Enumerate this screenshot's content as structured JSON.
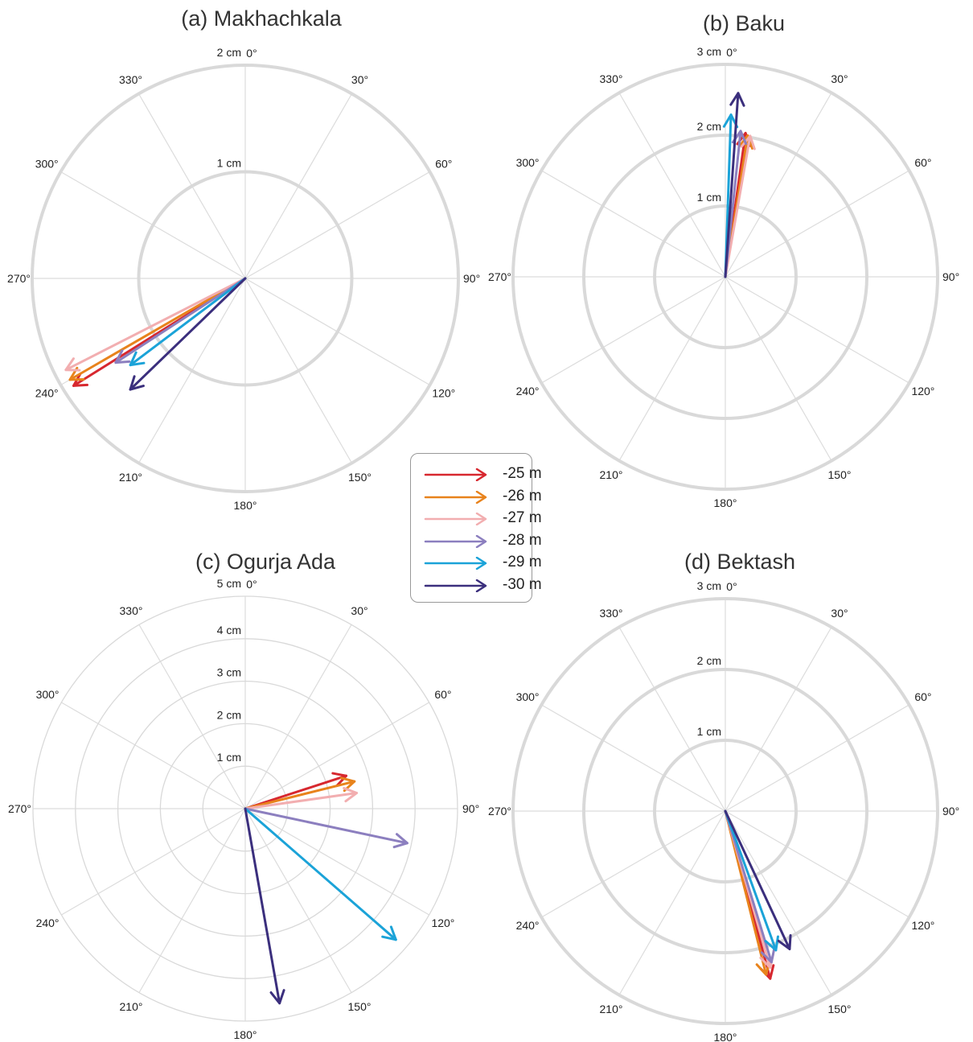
{
  "angle_labels": [
    "0°",
    "30°",
    "60°",
    "90°",
    "120°",
    "150°",
    "180°",
    "210°",
    "240°",
    "270°",
    "300°",
    "330°"
  ],
  "legend": [
    {
      "label": "-25 m",
      "color": "#d7282f"
    },
    {
      "label": "-26 m",
      "color": "#e8831c"
    },
    {
      "label": "-27 m",
      "color": "#f2aeb0"
    },
    {
      "label": "-28 m",
      "color": "#8c7fbf"
    },
    {
      "label": "-29 m",
      "color": "#1ba3d8"
    },
    {
      "label": "-30 m",
      "color": "#3b2f7d"
    }
  ],
  "chart_data": [
    {
      "type": "polar-vector",
      "title": "(a) Makhachkala",
      "rmax": 2,
      "rings": [
        1,
        2
      ],
      "ring_labels": [
        "1 cm",
        "2 cm"
      ],
      "highlight_rings": [
        1,
        2
      ],
      "series": [
        {
          "name": "-25 m",
          "direction_deg": 238,
          "magnitude": 1.9
        },
        {
          "name": "-26 m",
          "direction_deg": 240,
          "magnitude": 1.9
        },
        {
          "name": "-27 m",
          "direction_deg": 243,
          "magnitude": 1.89
        },
        {
          "name": "-28 m",
          "direction_deg": 237,
          "magnitude": 1.45
        },
        {
          "name": "-29 m",
          "direction_deg": 233,
          "magnitude": 1.35
        },
        {
          "name": "-30 m",
          "direction_deg": 226,
          "magnitude": 1.5
        }
      ]
    },
    {
      "type": "polar-vector",
      "title": "(b) Baku",
      "rmax": 3,
      "rings": [
        1,
        2,
        3
      ],
      "ring_labels": [
        "1 cm",
        "2 cm",
        "3 cm"
      ],
      "highlight_rings": [
        1,
        2,
        3
      ],
      "series": [
        {
          "name": "-25 m",
          "direction_deg": 8,
          "magnitude": 2.05
        },
        {
          "name": "-26 m",
          "direction_deg": 9,
          "magnitude": 2.02
        },
        {
          "name": "-27 m",
          "direction_deg": 10,
          "magnitude": 2.02
        },
        {
          "name": "-28 m",
          "direction_deg": 6,
          "magnitude": 2.07
        },
        {
          "name": "-29 m",
          "direction_deg": 2,
          "magnitude": 2.29
        },
        {
          "name": "-30 m",
          "direction_deg": 4,
          "magnitude": 2.6
        }
      ]
    },
    {
      "type": "polar-vector",
      "title": "(c) Ogurja Ada",
      "rmax": 5,
      "rings": [
        1,
        2,
        3,
        4,
        5
      ],
      "ring_labels": [
        "1 cm",
        "2 cm",
        "3 cm",
        "4 cm",
        "5 cm"
      ],
      "highlight_rings": [],
      "series": [
        {
          "name": "-25 m",
          "direction_deg": 72,
          "magnitude": 2.5
        },
        {
          "name": "-26 m",
          "direction_deg": 76,
          "magnitude": 2.65
        },
        {
          "name": "-27 m",
          "direction_deg": 82,
          "magnitude": 2.65
        },
        {
          "name": "-28 m",
          "direction_deg": 102,
          "magnitude": 3.9
        },
        {
          "name": "-29 m",
          "direction_deg": 131,
          "magnitude": 4.7
        },
        {
          "name": "-30 m",
          "direction_deg": 170,
          "magnitude": 4.65
        }
      ]
    },
    {
      "type": "polar-vector",
      "title": "(d) Bektash",
      "rmax": 3,
      "rings": [
        1,
        2,
        3
      ],
      "ring_labels": [
        "1 cm",
        "2 cm",
        "3 cm"
      ],
      "highlight_rings": [
        1,
        2,
        3
      ],
      "series": [
        {
          "name": "-25 m",
          "direction_deg": 165,
          "magnitude": 2.45
        },
        {
          "name": "-26 m",
          "direction_deg": 166,
          "magnitude": 2.38
        },
        {
          "name": "-27 m",
          "direction_deg": 164,
          "magnitude": 2.3
        },
        {
          "name": "-28 m",
          "direction_deg": 163,
          "magnitude": 2.23
        },
        {
          "name": "-29 m",
          "direction_deg": 160,
          "magnitude": 2.09
        },
        {
          "name": "-30 m",
          "direction_deg": 155,
          "magnitude": 2.15
        }
      ]
    }
  ]
}
